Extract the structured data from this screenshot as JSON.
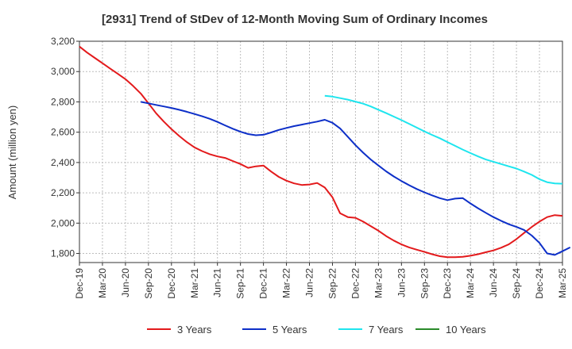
{
  "chart_data": {
    "type": "line",
    "title": "[2931]  Trend of StDev of 12-Month Moving Sum of Ordinary Incomes",
    "ylabel": "Amount (million yen)",
    "xlabel": "",
    "x_tick_labels": [
      "Dec-19",
      "Mar-20",
      "Jun-20",
      "Sep-20",
      "Dec-20",
      "Mar-21",
      "Jun-21",
      "Sep-21",
      "Dec-21",
      "Mar-22",
      "Jun-22",
      "Sep-22",
      "Dec-22",
      "Mar-23",
      "Jun-23",
      "Sep-23",
      "Dec-23",
      "Mar-24",
      "Jun-24",
      "Sep-24",
      "Dec-24",
      "Mar-25"
    ],
    "y_tick_labels": [
      "1,800",
      "2,000",
      "2,200",
      "2,400",
      "2,600",
      "2,800",
      "3,000",
      "3,200"
    ],
    "y_ticks": [
      1800,
      2000,
      2200,
      2400,
      2600,
      2800,
      3000,
      3200
    ],
    "ylim": [
      1740,
      3200
    ],
    "x_month_range": [
      "Dec-19",
      "Mar-25"
    ],
    "grid": true,
    "legend_position": "bottom",
    "series": [
      {
        "name": "3 Years",
        "color": "#e31a1c",
        "start": "Dec-19",
        "values": [
          3165,
          3125,
          3090,
          3055,
          3020,
          2985,
          2950,
          2905,
          2855,
          2790,
          2725,
          2670,
          2620,
          2575,
          2535,
          2500,
          2475,
          2455,
          2440,
          2430,
          2410,
          2390,
          2365,
          2375,
          2380,
          2340,
          2305,
          2280,
          2262,
          2252,
          2255,
          2265,
          2235,
          2170,
          2065,
          2040,
          2035,
          2010,
          1980,
          1950,
          1915,
          1885,
          1860,
          1840,
          1825,
          1810,
          1795,
          1782,
          1775,
          1775,
          1778,
          1785,
          1795,
          1808,
          1820,
          1838,
          1860,
          1895,
          1935,
          1975,
          2010,
          2040,
          2053,
          2048
        ]
      },
      {
        "name": "5 Years",
        "color": "#0d2fc8",
        "start": "Aug-20",
        "values": [
          2800,
          2790,
          2780,
          2770,
          2760,
          2748,
          2735,
          2720,
          2705,
          2688,
          2668,
          2645,
          2623,
          2603,
          2588,
          2580,
          2583,
          2598,
          2615,
          2628,
          2640,
          2650,
          2660,
          2670,
          2682,
          2662,
          2625,
          2570,
          2515,
          2465,
          2420,
          2380,
          2342,
          2308,
          2278,
          2250,
          2225,
          2203,
          2183,
          2165,
          2152,
          2162,
          2165,
          2130,
          2098,
          2068,
          2040,
          2015,
          1993,
          1975,
          1955,
          1918,
          1870,
          1800,
          1790,
          1815,
          1840
        ]
      },
      {
        "name": "7 Years",
        "color": "#1ee5ee",
        "start": "Aug-22",
        "values": [
          2840,
          2835,
          2825,
          2815,
          2802,
          2788,
          2770,
          2748,
          2726,
          2703,
          2680,
          2655,
          2630,
          2605,
          2582,
          2560,
          2535,
          2510,
          2485,
          2462,
          2440,
          2420,
          2405,
          2390,
          2375,
          2360,
          2340,
          2318,
          2290,
          2270,
          2262,
          2260
        ]
      },
      {
        "name": "10 Years",
        "color": "#2a8a2a",
        "start": "Mar-25",
        "values": []
      }
    ]
  }
}
